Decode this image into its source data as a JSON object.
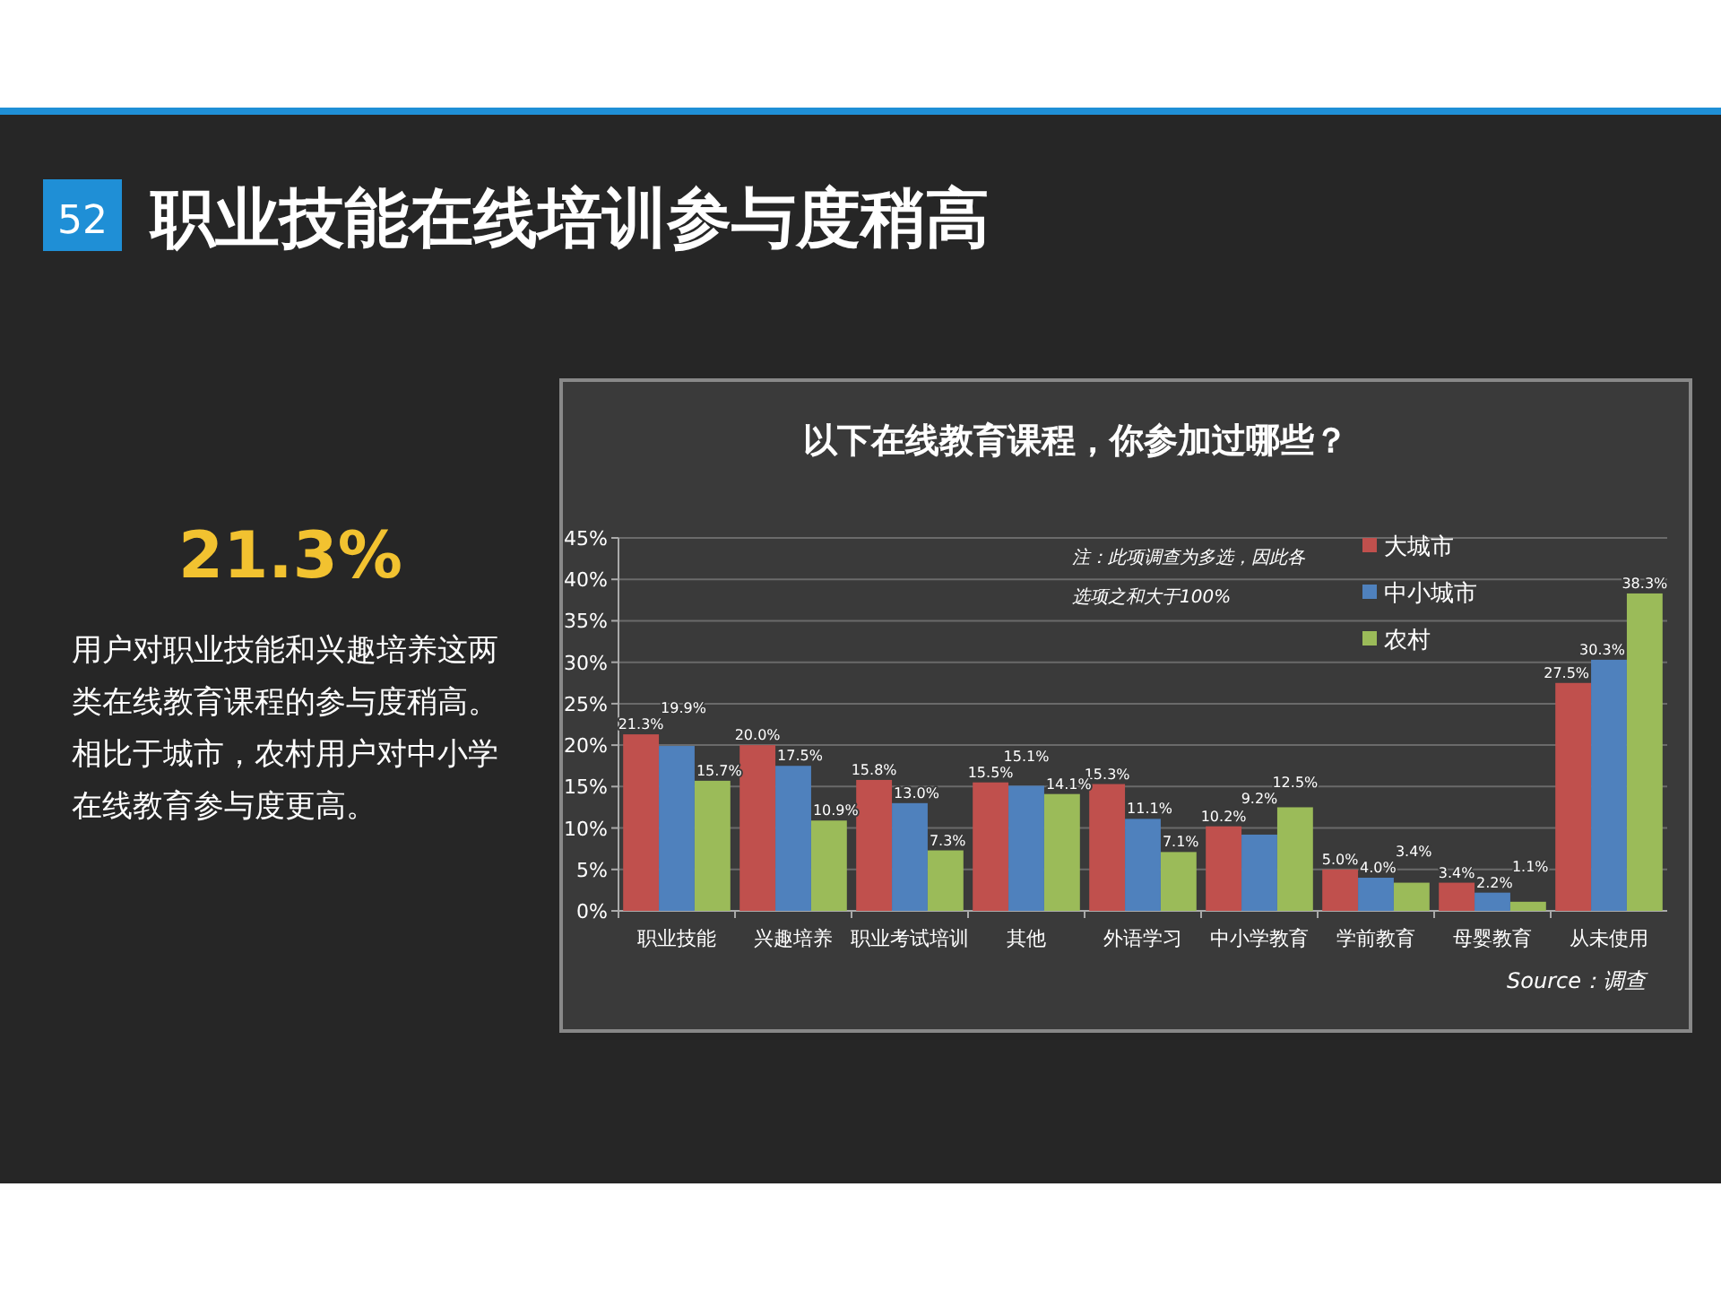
{
  "chart_data": {
    "type": "bar",
    "title": "职业技能在线培训参与度稍高",
    "subtitle": "以下在线教育课程，你参加过哪些？",
    "categories": [
      "职业技能",
      "兴趣培养",
      "职业考试培训",
      "其他",
      "外语学习",
      "中小学教育",
      "学前教育",
      "母婴教育",
      "从未使用"
    ],
    "series": [
      {
        "name": "大城市",
        "color": "#c0504d",
        "values": [
          21.3,
          20.0,
          15.8,
          15.5,
          15.3,
          10.2,
          5.0,
          3.4,
          27.5
        ],
        "value_labels": [
          "21.3%",
          "20.0%",
          "15.8%",
          "15.5%",
          "15.3%",
          "10.2%",
          "5.0%",
          "3.4%",
          "27.5%"
        ]
      },
      {
        "name": "中小城市",
        "color": "#4f81bd",
        "values": [
          19.9,
          17.5,
          13.0,
          15.1,
          11.1,
          9.2,
          4.0,
          2.2,
          30.3
        ],
        "value_labels": [
          "19.9%",
          "17.5%",
          "13.0%",
          "15.1%",
          "11.1%",
          "9.2%",
          "4.0%",
          "2.2%",
          "30.3%"
        ]
      },
      {
        "name": "农村",
        "color": "#9bbb59",
        "values": [
          15.7,
          10.9,
          7.3,
          14.1,
          7.1,
          12.5,
          3.4,
          1.1,
          38.3
        ],
        "value_labels": [
          "15.7%",
          "10.9%",
          "7.3%",
          "14.1%",
          "7.1%",
          "12.5%",
          "3.4%",
          "1.1%",
          "38.3%"
        ]
      }
    ],
    "ylim": [
      0,
      45
    ],
    "yticks": [
      {
        "value": 0,
        "label": "0%"
      },
      {
        "value": 5,
        "label": "5%"
      },
      {
        "value": 10,
        "label": "10%"
      },
      {
        "value": 15,
        "label": "15%"
      },
      {
        "value": 20,
        "label": "20%"
      },
      {
        "value": 25,
        "label": "25%"
      },
      {
        "value": 30,
        "label": "30%"
      },
      {
        "value": 35,
        "label": "35%"
      },
      {
        "value": 40,
        "label": "40%"
      },
      {
        "value": 45,
        "label": "45%"
      }
    ],
    "grid": "y",
    "legend": "top right",
    "annotations": [
      "52",
      "21.3%",
      "用户对职业技能和兴趣培养这两类在线教育课程的参与度稍高。相比于城市，农村用户对中小学在线教育参与度更高。",
      "注：此项调查为多选，因此各选项之和大于100%",
      "Source：调查"
    ]
  }
}
